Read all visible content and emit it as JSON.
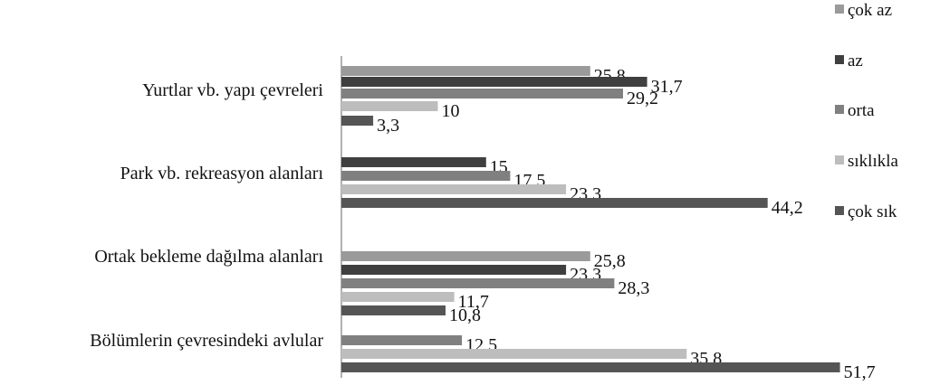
{
  "chart_data": {
    "type": "bar",
    "orientation": "horizontal",
    "title": "",
    "xlabel": "",
    "ylabel": "",
    "categories": [
      "Yurtlar vb. yapı çevreleri",
      "Park vb. rekreasyon alanları",
      "Ortak bekleme dağılma alanları",
      "Bölümlerin çevresindeki avlular"
    ],
    "series": [
      {
        "name": "çok az",
        "color": "#9a9a9a",
        "values": [
          25.8,
          null,
          25.8,
          null
        ],
        "labels": [
          "25,8",
          "",
          "25,8",
          ""
        ]
      },
      {
        "name": "az",
        "color": "#3f3f3f",
        "values": [
          31.7,
          15,
          23.3,
          null
        ],
        "labels": [
          "31,7",
          "15",
          "23,3",
          ""
        ]
      },
      {
        "name": "orta",
        "color": "#808080",
        "values": [
          29.2,
          17.5,
          28.3,
          12.5
        ],
        "labels": [
          "29,2",
          "17,5",
          "28,3",
          "12,5"
        ]
      },
      {
        "name": "sıklıkla",
        "color": "#bdbdbd",
        "values": [
          10,
          23.3,
          11.7,
          35.8
        ],
        "labels": [
          "10",
          "23,3",
          "11,7",
          "35,8"
        ]
      },
      {
        "name": "çok sık",
        "color": "#555555",
        "values": [
          3.3,
          44.2,
          10.8,
          51.7
        ],
        "labels": [
          "3,3",
          "44,2",
          "10,8",
          "51,7"
        ]
      }
    ],
    "xlim": [
      0,
      55
    ],
    "grid": false,
    "legend_position": "right"
  }
}
